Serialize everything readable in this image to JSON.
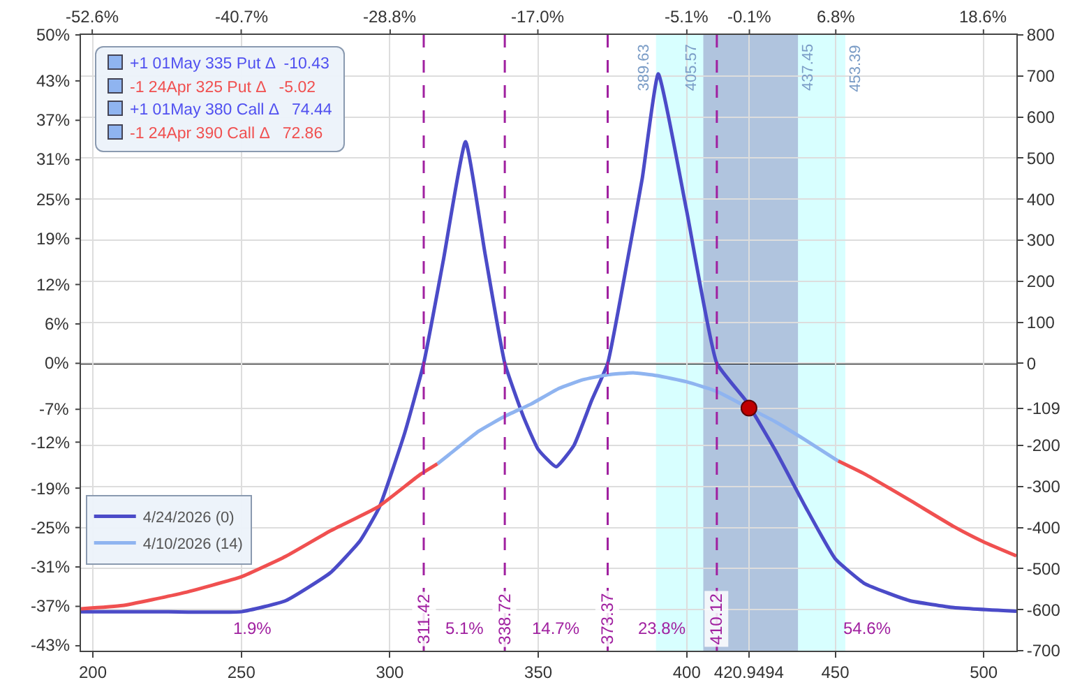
{
  "chart_data": {
    "type": "line",
    "xlim": [
      196,
      511
    ],
    "xticks": [
      200,
      250,
      300,
      350,
      400,
      450,
      500,
      420.9494
    ],
    "x2lim": [
      -53.5,
      21.23
    ],
    "x2ticks": [
      {
        "value": -52.6,
        "label": "-52.6%"
      },
      {
        "value": -40.7,
        "label": "-40.7%"
      },
      {
        "value": -28.8,
        "label": "-28.8%"
      },
      {
        "value": -17.0,
        "label": "-17.0%"
      },
      {
        "value": -5.1,
        "label": "-5.1%"
      },
      {
        "value": 6.8,
        "label": "6.8%"
      },
      {
        "value": 18.6,
        "label": "18.6%"
      },
      {
        "value": -0.1,
        "label": "-0.1%"
      }
    ],
    "ylim": [
      -43.75,
      50
    ],
    "yticks": [
      {
        "value": 50,
        "label": "50%"
      },
      {
        "value": 43,
        "label": "43%"
      },
      {
        "value": 37,
        "label": "37%"
      },
      {
        "value": 31,
        "label": "31%"
      },
      {
        "value": 25,
        "label": "25%"
      },
      {
        "value": 19,
        "label": "19%"
      },
      {
        "value": 12,
        "label": "12%"
      },
      {
        "value": 6,
        "label": "6%"
      },
      {
        "value": 0,
        "label": "0%"
      },
      {
        "value": -7,
        "label": "-7%"
      },
      {
        "value": -12,
        "label": "-12%"
      },
      {
        "value": -19,
        "label": "-19%"
      },
      {
        "value": -25,
        "label": "-25%"
      },
      {
        "value": -31,
        "label": "-31%"
      },
      {
        "value": -37,
        "label": "-37%"
      },
      {
        "value": -43,
        "label": "-43%"
      }
    ],
    "y2lim": [
      -700,
      800
    ],
    "y2ticks": [
      800,
      700,
      600,
      500,
      400,
      300,
      200,
      100,
      0,
      -109,
      -200,
      -300,
      -400,
      -500,
      -600,
      -700
    ],
    "grid": true,
    "legend": "bottom left",
    "series": [
      {
        "name": "4/24/2026 (0)",
        "color": "#4b4bc8",
        "axis": "y2",
        "x": [
          196,
          220,
          250,
          265,
          280,
          290,
          296.5,
          305,
          311.42,
          318,
          325.5,
          332,
          338.72,
          345,
          350,
          356,
          362,
          368,
          373.37,
          380,
          385,
          390.4,
          400,
          410.12,
          420,
          430,
          440,
          450,
          460,
          475,
          490,
          511
        ],
        "values": [
          -605,
          -605,
          -605,
          -578,
          -510,
          -432,
          -350,
          -170,
          0,
          250,
          540,
          270,
          0,
          -130,
          -210,
          -252,
          -200,
          -90,
          0,
          250,
          450,
          705,
          370,
          0,
          -92,
          -214,
          -350,
          -476,
          -537,
          -578,
          -595,
          -604
        ]
      },
      {
        "name": "4/10/2026 (14)",
        "color": "#8fb4f0",
        "axis": "y2",
        "x": [
          316,
          320,
          330,
          338.72,
          347.6,
          357,
          365,
          373.37,
          382,
          390,
          400,
          410,
          420.95,
          430,
          440,
          451
        ],
        "values": [
          -245,
          -222,
          -165,
          -129,
          -99,
          -61,
          -40,
          -28,
          -23,
          -30,
          -45,
          -68,
          -109,
          -143,
          -187,
          -238
        ]
      },
      {
        "color": "#f05050",
        "axis": "y2",
        "x": [
          196,
          210,
          230,
          250,
          265,
          280,
          296,
          310,
          316
        ],
        "values": [
          -598,
          -590,
          -560,
          -520,
          -470,
          -408,
          -350,
          -272,
          -245
        ]
      },
      {
        "color": "#f05050",
        "axis": "y2",
        "x": [
          451,
          460,
          475,
          490,
          500,
          511
        ],
        "values": [
          -238,
          -270,
          -333,
          -398,
          -435,
          -469
        ]
      },
      {
        "type": "scatter",
        "marker": "circle",
        "color": "#c00000",
        "axis": "y2",
        "x": [
          420.9494
        ],
        "values": [
          -109
        ]
      }
    ],
    "ref_lines": [
      {
        "axis": "x",
        "value": 311.42,
        "label": "311.42",
        "color": "#a020a0",
        "line_style": "dashed"
      },
      {
        "axis": "x",
        "value": 338.72,
        "label": "338.72",
        "color": "#a020a0",
        "line_style": "dashed"
      },
      {
        "axis": "x",
        "value": 373.37,
        "label": "373.37",
        "color": "#a020a0",
        "line_style": "dashed"
      },
      {
        "axis": "x",
        "value": 410.12,
        "label": "410.12",
        "color": "#a020a0",
        "line_style": "dashed"
      },
      {
        "axis": "y2",
        "value": 0,
        "color": "#000000",
        "line_style": "solid"
      }
    ],
    "bands": [
      {
        "axis": "x",
        "from": 389.63,
        "to": 453.39,
        "color": "#d8ffff",
        "label": "389.63"
      },
      {
        "axis": "x",
        "from": 405.57,
        "to": 437.45,
        "color": "#b0c4de",
        "label": "405.57"
      }
    ],
    "annotations": [
      "+1 01May 335 Put Δ  -10.43",
      "-1 24Apr 325 Put Δ   -5.02",
      "+1 01May 380 Call Δ   74.44",
      "-1 24Apr 390 Call Δ   72.86",
      "453.39",
      "437.45",
      "1.9%",
      "5.1%",
      "14.7%",
      "23.8%",
      "54.6%"
    ]
  }
}
